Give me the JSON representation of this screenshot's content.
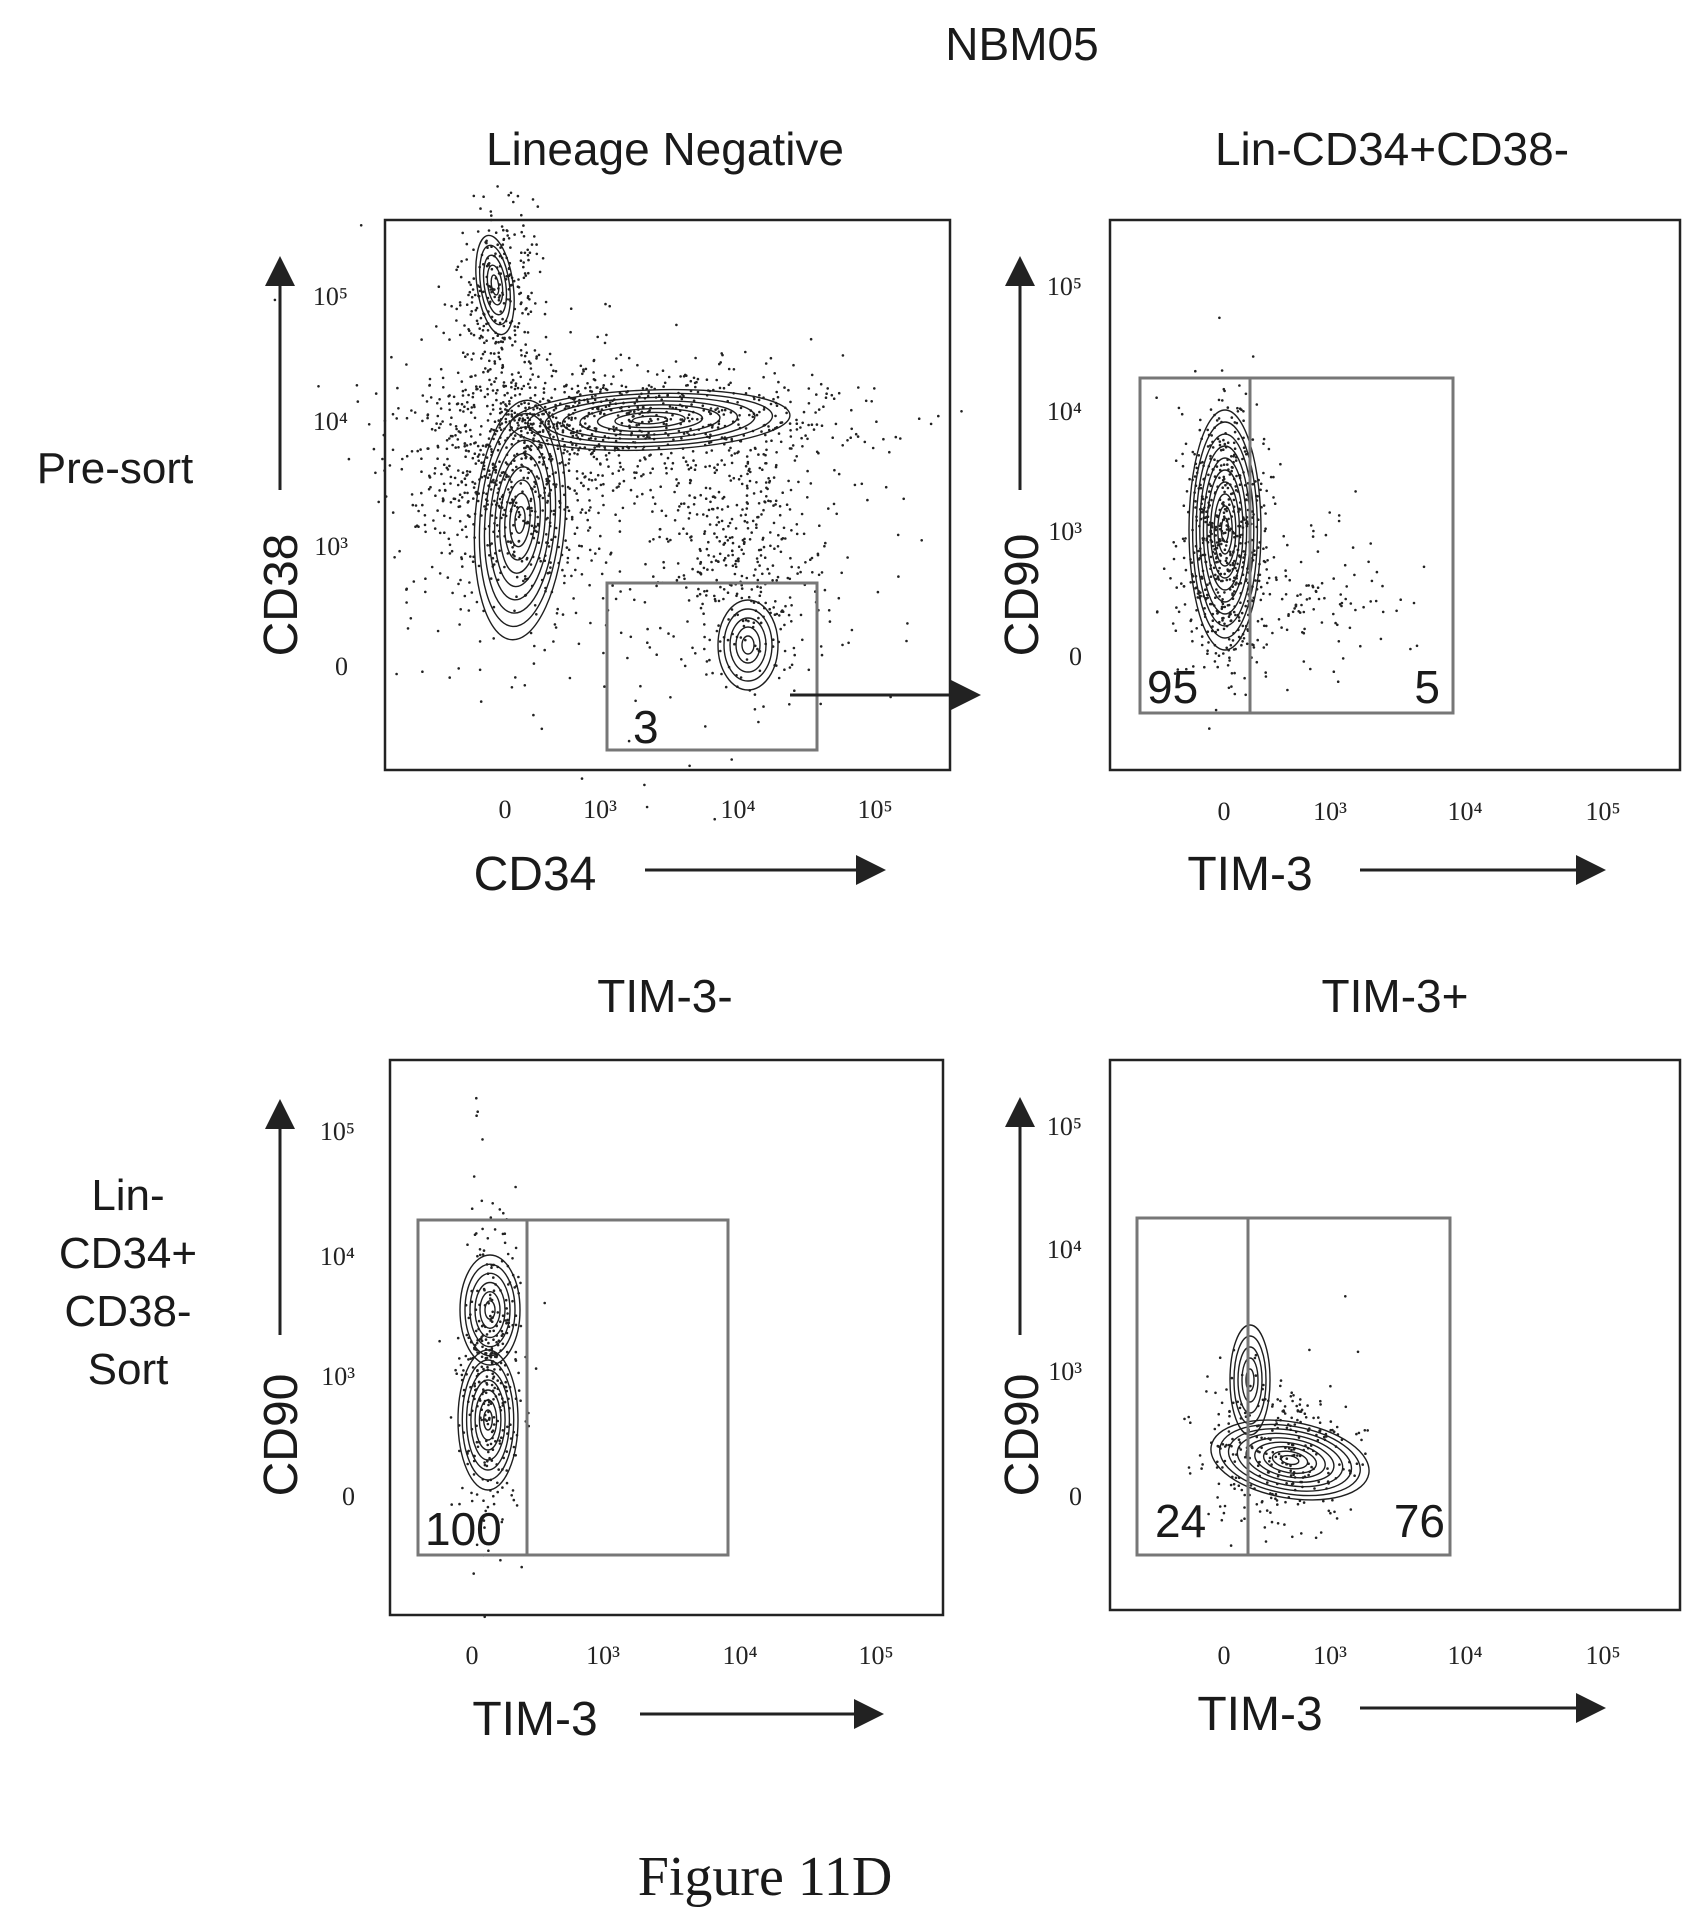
{
  "figure": {
    "sample": "NBM05",
    "caption": "Figure 11D",
    "row_labels": {
      "presort": "Pre-sort",
      "sort_lines": [
        "Lin-",
        "CD34+",
        "CD38-",
        "Sort"
      ]
    }
  },
  "panels": [
    {
      "id": "lineage-negative",
      "title": "Lineage Negative",
      "xlabel": "CD34",
      "ylabel": "CD38",
      "xticks": [
        "0",
        "10³",
        "10⁴",
        "10⁵"
      ],
      "yticks": [
        "10⁵",
        "10⁴",
        "10³",
        "0"
      ],
      "gate_labels": [
        "3"
      ]
    },
    {
      "id": "lin-cd34-cd38",
      "title": "Lin-CD34+CD38-",
      "xlabel": "TIM-3",
      "ylabel": "CD90",
      "xticks": [
        "0",
        "10³",
        "10⁴",
        "10⁵"
      ],
      "yticks": [
        "10⁵",
        "10⁴",
        "10³",
        "0"
      ],
      "gate_labels": [
        "95",
        "5"
      ]
    },
    {
      "id": "tim3-neg",
      "title": "TIM-3-",
      "xlabel": "TIM-3",
      "ylabel": "CD90",
      "xticks": [
        "0",
        "10³",
        "10⁴",
        "10⁵"
      ],
      "yticks": [
        "10⁵",
        "10⁴",
        "10³",
        "0"
      ],
      "gate_labels": [
        "100"
      ]
    },
    {
      "id": "tim3-pos",
      "title": "TIM-3+",
      "xlabel": "TIM-3",
      "ylabel": "CD90",
      "xticks": [
        "0",
        "10³",
        "10⁴",
        "10⁵"
      ],
      "yticks": [
        "10⁵",
        "10⁴",
        "10³",
        "0"
      ],
      "gate_labels": [
        "24",
        "76"
      ]
    }
  ],
  "chart_data": [
    {
      "type": "scatter",
      "title": "Lineage Negative",
      "xlabel": "CD34",
      "ylabel": "CD38",
      "x_ticks": [
        "0",
        "10³",
        "10⁴",
        "10⁵"
      ],
      "y_ticks": [
        "0",
        "10³",
        "10⁴",
        "10⁵"
      ],
      "gates": [
        {
          "label": "3",
          "percent": 3
        }
      ]
    },
    {
      "type": "scatter",
      "title": "Lin-CD34+CD38-",
      "xlabel": "TIM-3",
      "ylabel": "CD90",
      "x_ticks": [
        "0",
        "10³",
        "10⁴",
        "10⁵"
      ],
      "y_ticks": [
        "0",
        "10³",
        "10⁴",
        "10⁵"
      ],
      "gates": [
        {
          "label": "95",
          "percent": 95
        },
        {
          "label": "5",
          "percent": 5
        }
      ]
    },
    {
      "type": "scatter",
      "title": "TIM-3-",
      "xlabel": "TIM-3",
      "ylabel": "CD90",
      "x_ticks": [
        "0",
        "10³",
        "10⁴",
        "10⁵"
      ],
      "y_ticks": [
        "0",
        "10³",
        "10⁴",
        "10⁵"
      ],
      "gates": [
        {
          "label": "100",
          "percent": 100
        }
      ]
    },
    {
      "type": "scatter",
      "title": "TIM-3+",
      "xlabel": "TIM-3",
      "ylabel": "CD90",
      "x_ticks": [
        "0",
        "10³",
        "10⁴",
        "10⁵"
      ],
      "y_ticks": [
        "0",
        "10³",
        "10⁴",
        "10⁵"
      ],
      "gates": [
        {
          "label": "24",
          "percent": 24
        },
        {
          "label": "76",
          "percent": 76
        }
      ]
    }
  ]
}
